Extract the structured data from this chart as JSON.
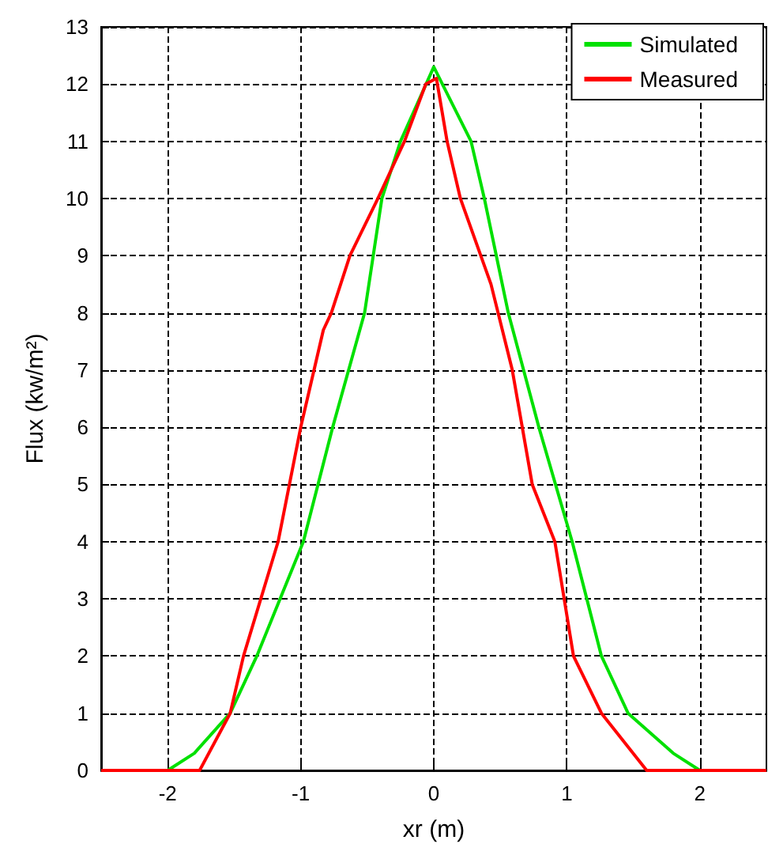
{
  "chart_data": {
    "type": "line",
    "xlabel": "xr (m)",
    "ylabel": "Flux (kw/m²)",
    "xlim": [
      -2.5,
      2.5
    ],
    "xticks": [
      -2,
      -1,
      0,
      1,
      2
    ],
    "ylim": [
      0,
      13
    ],
    "yticks": [
      0,
      1,
      2,
      3,
      4,
      5,
      6,
      7,
      8,
      9,
      10,
      11,
      12,
      13
    ],
    "grid": true,
    "legend": "top right",
    "marker": "none",
    "line_style": "solid",
    "series": [
      {
        "name": "Simulated",
        "color": "#00e000",
        "x": [
          -2,
          -1.8,
          -1.53,
          -1.33,
          -0.98,
          -0.76,
          -0.52,
          -0.39,
          -0.25,
          0,
          0.28,
          0.38,
          0.56,
          0.79,
          1.04,
          1.26,
          1.46,
          1.8,
          2
        ],
        "values": [
          0,
          0.3,
          1,
          2,
          4,
          6,
          8,
          10,
          11,
          12.3,
          11,
          10,
          8,
          6,
          4,
          2,
          1,
          0.3,
          0
        ]
      },
      {
        "name": "Measured",
        "color": "#ff0000",
        "x": [
          -2.5,
          -1.76,
          -1.53,
          -1.43,
          -1.17,
          -1,
          -0.83,
          -0.77,
          -0.63,
          -0.42,
          -0.22,
          -0.06,
          0.02,
          0.1,
          0.2,
          0.43,
          0.59,
          0.74,
          0.91,
          1.05,
          1.26,
          1.6,
          2.5
        ],
        "values": [
          0,
          0,
          1,
          2,
          4,
          6,
          7.7,
          8,
          9,
          10,
          11,
          12,
          12.1,
          11,
          10,
          8.5,
          7,
          5,
          4,
          2,
          1,
          0,
          0
        ]
      }
    ]
  }
}
